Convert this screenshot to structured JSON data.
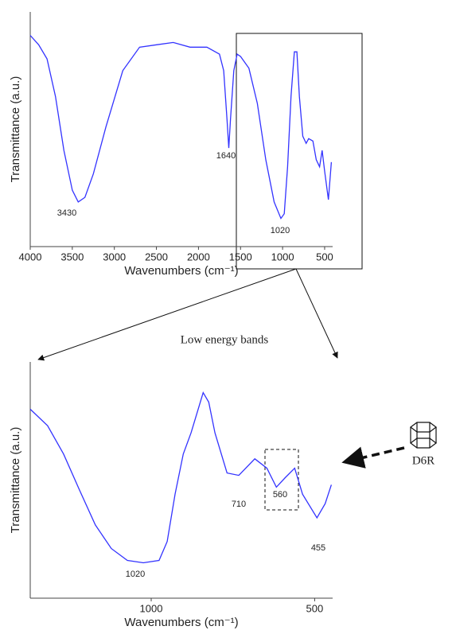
{
  "chart_data": [
    {
      "type": "line",
      "x_label": "Wavenumbers (cm⁻¹)",
      "y_label": "Transmittance (a.u.)",
      "xlim": [
        4000,
        405
      ],
      "ylim": [
        0,
        100
      ],
      "xticks": [
        4000,
        3500,
        3000,
        2500,
        2000,
        1500,
        1000,
        500
      ],
      "series": [
        {
          "color": "#3333ff",
          "x": [
            4000,
            3900,
            3800,
            3700,
            3600,
            3500,
            3430,
            3350,
            3250,
            3100,
            2900,
            2700,
            2500,
            2300,
            2100,
            1900,
            1750,
            1700,
            1660,
            1640,
            1620,
            1580,
            1540,
            1500,
            1400,
            1300,
            1200,
            1100,
            1020,
            980,
            940,
            900,
            860,
            830,
            800,
            760,
            720,
            690,
            640,
            600,
            560,
            530,
            500,
            455,
            420
          ],
          "values": [
            90,
            86,
            80,
            64,
            41,
            24,
            19,
            21,
            31,
            51,
            75,
            85,
            86,
            87,
            85,
            85,
            82,
            75,
            54,
            42,
            54,
            75,
            82,
            81,
            76,
            61,
            37,
            19,
            12,
            14,
            34,
            64,
            83,
            83,
            64,
            47,
            44,
            46,
            45,
            37,
            34,
            41,
            32,
            20,
            36
          ]
        }
      ],
      "annotations": [
        "3430",
        "1640",
        "1020"
      ]
    },
    {
      "type": "line",
      "x_label": "Wavenumbers (cm⁻¹)",
      "y_label": "Transmittance (a.u.)",
      "xlim": [
        1370,
        445
      ],
      "ylim": [
        0,
        100
      ],
      "xticks": [
        1000,
        500
      ],
      "series": [
        {
          "color": "#3333ff",
          "x": [
            1370,
            1317,
            1268,
            1220,
            1171,
            1122,
            1073,
            1024,
            976,
            951,
            927,
            902,
            878,
            841,
            824,
            805,
            768,
            732,
            683,
            646,
            617,
            590,
            561,
            537,
            493,
            468,
            449
          ],
          "values": [
            80,
            73,
            61,
            46,
            31,
            21,
            16,
            15,
            16,
            24,
            44,
            61,
            70,
            87,
            83,
            70,
            53,
            52,
            59,
            55,
            47,
            51,
            55,
            44,
            34,
            40,
            48
          ]
        }
      ],
      "annotations": [
        "1020",
        "710",
        "560",
        "455"
      ]
    }
  ],
  "figure": {
    "zoom_label": "Low energy bands",
    "structure_label": "D6R"
  }
}
